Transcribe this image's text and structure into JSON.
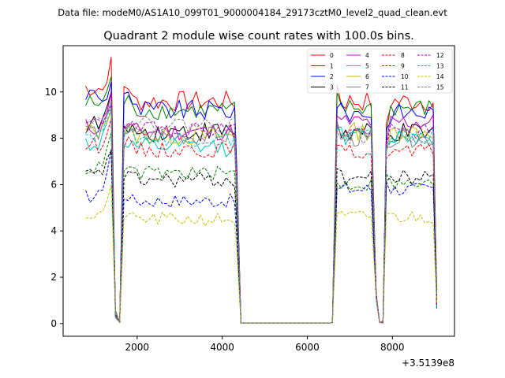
{
  "chart_data": {
    "type": "line",
    "suptitle": "Data file: modeM0/AS1A10_099T01_9000004184_29173cztM0_level2_quad_clean.evt",
    "title": "Quadrant 2 module wise count rates with 100.0s bins.",
    "xlabel": "",
    "ylabel": "",
    "offset_text": "+3.5139e8",
    "xlim": [
      260,
      9460
    ],
    "ylim": [
      -0.55,
      12.0
    ],
    "xticks": [
      2000,
      4000,
      6000,
      8000
    ],
    "xtick_labels": [
      "2000",
      "4000",
      "6000",
      "8000"
    ],
    "yticks": [
      0,
      2,
      4,
      6,
      8,
      10
    ],
    "ytick_labels": [
      "0",
      "2",
      "4",
      "6",
      "8",
      "10"
    ],
    "legend_position": "top-right",
    "series": [
      {
        "name": "0",
        "color": "#ff0000",
        "dash": "solid",
        "level": 9.6,
        "dip": 10.3,
        "gap": 9.6,
        "peak1": 11.4,
        "peak2": 10.2,
        "amp": 0.45,
        "bump": 0.6
      },
      {
        "name": "1",
        "color": "#008000",
        "dash": "solid",
        "level": 9.2,
        "dip": 9.9,
        "gap": 9.3,
        "peak1": 10.6,
        "peak2": 9.7,
        "amp": 0.4,
        "bump": 0.3
      },
      {
        "name": "2",
        "color": "#0000ff",
        "dash": "solid",
        "level": 9.2,
        "dip": 9.4,
        "gap": 9.1,
        "peak1": 10.4,
        "peak2": 9.9,
        "amp": 0.45,
        "bump": 0.7
      },
      {
        "name": "3",
        "color": "#000000",
        "dash": "solid",
        "level": 8.3,
        "dip": 8.7,
        "gap": 8.2,
        "peak1": 10.0,
        "peak2": 9.3,
        "amp": 0.45,
        "bump": 0.3
      },
      {
        "name": "4",
        "color": "#bf00bf",
        "dash": "solid",
        "level": 8.3,
        "dip": 8.9,
        "gap": 8.7,
        "peak1": 10.0,
        "peak2": 9.2,
        "amp": 0.4,
        "bump": 0.2
      },
      {
        "name": "5",
        "color": "#00bfbf",
        "dash": "solid",
        "level": 7.6,
        "dip": 8.6,
        "gap": 8.1,
        "peak1": 9.3,
        "peak2": 9.0,
        "amp": 0.4,
        "bump": 0.2
      },
      {
        "name": "6",
        "color": "#bfbf00",
        "dash": "solid",
        "level": 8.1,
        "dip": 8.5,
        "gap": 8.3,
        "peak1": 9.3,
        "peak2": 8.7,
        "amp": 0.4,
        "bump": 0.2
      },
      {
        "name": "7",
        "color": "#808080",
        "dash": "solid",
        "level": 8.1,
        "dip": 8.6,
        "gap": 8.0,
        "peak1": 9.5,
        "peak2": 9.0,
        "amp": 0.4,
        "bump": 0.2
      },
      {
        "name": "8",
        "color": "#ff0000",
        "dash": "dashed",
        "level": 7.5,
        "dip": 7.8,
        "gap": 7.4,
        "peak1": 8.8,
        "peak2": 8.4,
        "amp": 0.35,
        "bump": 0.2
      },
      {
        "name": "9",
        "color": "#008000",
        "dash": "dashed",
        "level": 6.5,
        "dip": 6.1,
        "gap": 6.0,
        "peak1": 8.2,
        "peak2": 7.6,
        "amp": 0.3,
        "bump": 0.2
      },
      {
        "name": "10",
        "color": "#0000ff",
        "dash": "dashed",
        "level": 5.3,
        "dip": 5.8,
        "gap": 5.8,
        "peak1": 7.5,
        "peak2": 7.2,
        "amp": 0.3,
        "bump": 0.2
      },
      {
        "name": "11",
        "color": "#000000",
        "dash": "dashed",
        "level": 6.2,
        "dip": 6.6,
        "gap": 6.3,
        "peak1": 7.5,
        "peak2": 7.2,
        "amp": 0.35,
        "bump": 0.2
      },
      {
        "name": "12",
        "color": "#bf00bf",
        "dash": "dashed",
        "level": 8.4,
        "dip": 8.6,
        "gap": 8.3,
        "peak1": 9.5,
        "peak2": 9.0,
        "amp": 0.35,
        "bump": 0.2
      },
      {
        "name": "13",
        "color": "#00bfbf",
        "dash": "dashed",
        "level": 8.0,
        "dip": 8.5,
        "gap": 8.1,
        "peak1": 9.4,
        "peak2": 8.9,
        "amp": 0.35,
        "bump": 0.2
      },
      {
        "name": "14",
        "color": "#bfbf00",
        "dash": "dashed",
        "level": 4.5,
        "dip": 4.7,
        "gap": 4.6,
        "peak1": 5.9,
        "peak2": 5.6,
        "amp": 0.3,
        "bump": 0.2
      },
      {
        "name": "15",
        "color": "#808080",
        "dash": "dashed",
        "level": 8.6,
        "dip": 8.4,
        "gap": 8.1,
        "peak1": 9.2,
        "peak2": 8.8,
        "amp": 0.35,
        "bump": 0.2
      }
    ],
    "segments": {
      "bin_seconds": 100,
      "on1": [
        790,
        4290
      ],
      "fall1": [
        4290,
        4440
      ],
      "off": [
        4440,
        6590
      ],
      "rise2": [
        6590,
        6700
      ],
      "on2": [
        6700,
        7540
      ],
      "dip2": [
        7540,
        7860
      ],
      "on3": [
        7860,
        8990
      ],
      "end": 9040,
      "early_dip": [
        1390,
        1640
      ]
    }
  }
}
